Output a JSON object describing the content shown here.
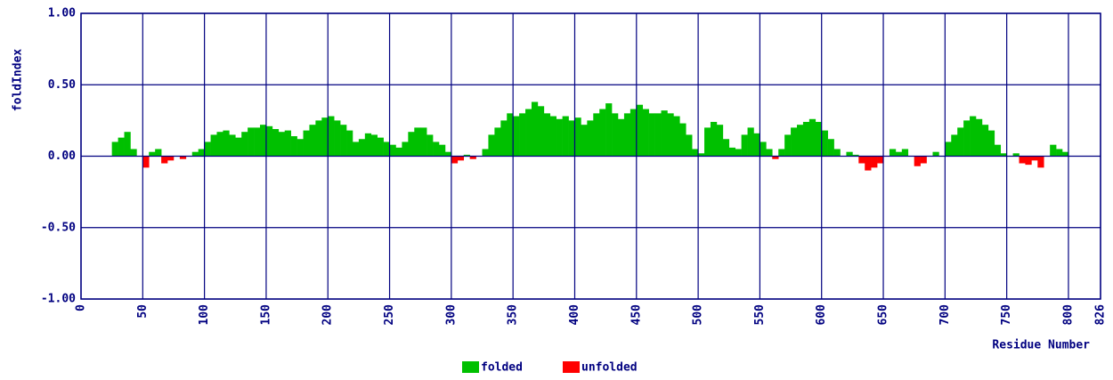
{
  "chart_data": {
    "type": "area",
    "y_label": "foldIndex",
    "x_label": "Residue Number",
    "legend": [
      {
        "name": "folded",
        "color": "#00c000"
      },
      {
        "name": "unfolded",
        "color": "#ff0000"
      }
    ],
    "x": [
      25,
      30,
      35,
      40,
      45,
      50,
      55,
      60,
      65,
      70,
      75,
      80,
      85,
      90,
      95,
      100,
      105,
      110,
      115,
      120,
      125,
      130,
      135,
      140,
      145,
      150,
      155,
      160,
      165,
      170,
      175,
      180,
      185,
      190,
      195,
      200,
      205,
      210,
      215,
      220,
      225,
      230,
      235,
      240,
      245,
      250,
      255,
      260,
      265,
      270,
      275,
      280,
      285,
      290,
      295,
      300,
      305,
      310,
      315,
      320,
      325,
      330,
      335,
      340,
      345,
      350,
      355,
      360,
      365,
      370,
      375,
      380,
      385,
      390,
      395,
      400,
      405,
      410,
      415,
      420,
      425,
      430,
      435,
      440,
      445,
      450,
      455,
      460,
      465,
      470,
      475,
      480,
      485,
      490,
      495,
      500,
      505,
      510,
      515,
      520,
      525,
      530,
      535,
      540,
      545,
      550,
      555,
      560,
      565,
      570,
      575,
      580,
      585,
      590,
      595,
      600,
      605,
      610,
      615,
      620,
      625,
      630,
      635,
      640,
      645,
      650,
      655,
      660,
      665,
      670,
      675,
      680,
      685,
      690,
      695,
      700,
      705,
      710,
      715,
      720,
      725,
      730,
      735,
      740,
      745,
      750,
      755,
      760,
      765,
      770,
      775,
      780,
      785,
      790,
      795,
      800
    ],
    "values": [
      0.1,
      0.13,
      0.17,
      0.05,
      0.0,
      -0.08,
      0.03,
      0.05,
      -0.05,
      -0.03,
      0.0,
      -0.02,
      0.0,
      0.03,
      0.05,
      0.1,
      0.15,
      0.17,
      0.18,
      0.15,
      0.13,
      0.17,
      0.2,
      0.2,
      0.22,
      0.21,
      0.19,
      0.17,
      0.18,
      0.14,
      0.12,
      0.18,
      0.22,
      0.25,
      0.27,
      0.28,
      0.25,
      0.22,
      0.18,
      0.1,
      0.12,
      0.16,
      0.15,
      0.13,
      0.1,
      0.08,
      0.06,
      0.1,
      0.17,
      0.2,
      0.2,
      0.15,
      0.1,
      0.08,
      0.03,
      -0.05,
      -0.03,
      0.01,
      -0.02,
      0.0,
      0.05,
      0.15,
      0.2,
      0.25,
      0.3,
      0.28,
      0.3,
      0.33,
      0.38,
      0.35,
      0.3,
      0.28,
      0.26,
      0.28,
      0.25,
      0.27,
      0.22,
      0.25,
      0.3,
      0.33,
      0.37,
      0.3,
      0.26,
      0.3,
      0.33,
      0.36,
      0.33,
      0.3,
      0.3,
      0.32,
      0.3,
      0.28,
      0.23,
      0.15,
      0.05,
      0.02,
      0.2,
      0.24,
      0.22,
      0.12,
      0.06,
      0.05,
      0.15,
      0.2,
      0.16,
      0.1,
      0.05,
      -0.02,
      0.05,
      0.15,
      0.2,
      0.22,
      0.24,
      0.26,
      0.24,
      0.18,
      0.12,
      0.05,
      0.0,
      0.03,
      0.01,
      -0.05,
      -0.1,
      -0.08,
      -0.05,
      0.0,
      0.05,
      0.03,
      0.05,
      0.0,
      -0.07,
      -0.05,
      0.0,
      0.03,
      0.0,
      0.1,
      0.15,
      0.2,
      0.25,
      0.28,
      0.26,
      0.22,
      0.18,
      0.08,
      0.02,
      0.0,
      0.02,
      -0.05,
      -0.06,
      -0.03,
      -0.08,
      0.0,
      0.08,
      0.05,
      0.03,
      0.0
    ],
    "xlim": [
      0,
      826
    ],
    "xticks": [
      0,
      50,
      100,
      150,
      200,
      250,
      300,
      350,
      400,
      450,
      500,
      550,
      600,
      650,
      700,
      750,
      800,
      826
    ],
    "ylim": [
      -1,
      1
    ],
    "yticks": [
      {
        "value": -1,
        "label": "-1.00"
      },
      {
        "value": -0.5,
        "label": "-0.50"
      },
      {
        "value": 0,
        "label": "0.00"
      },
      {
        "value": 0.5,
        "label": "0.50"
      },
      {
        "value": 1,
        "label": "1.00"
      }
    ],
    "grid": true
  }
}
